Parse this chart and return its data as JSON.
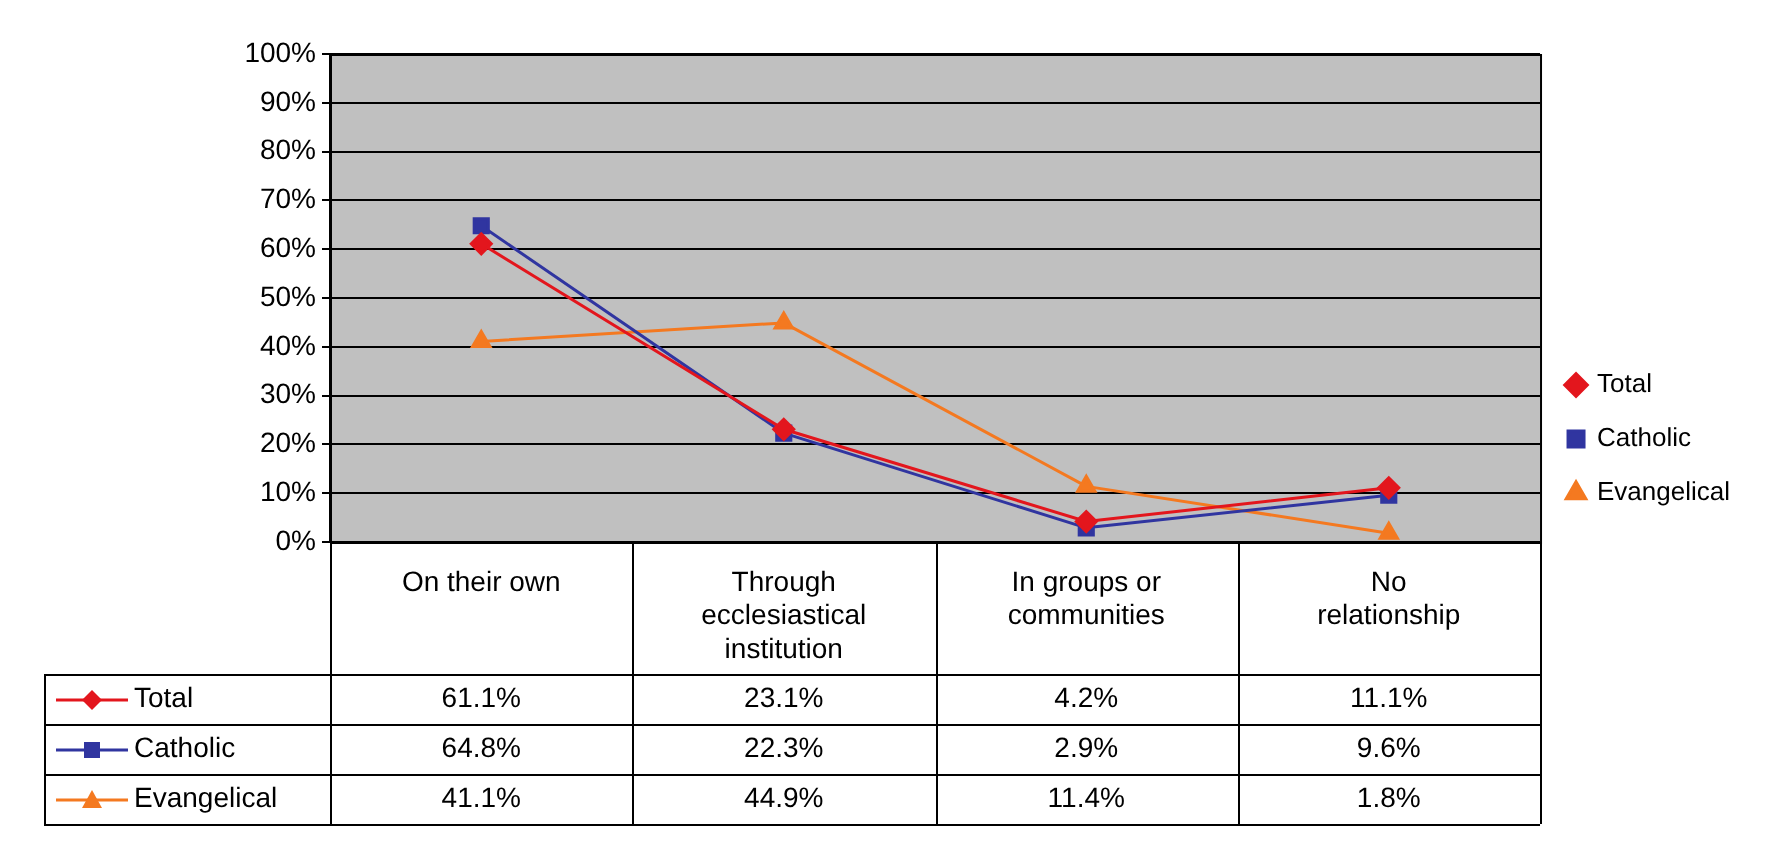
{
  "chart_data": {
    "type": "line",
    "categories": [
      "On their own",
      "Through ecclesiastical institution",
      "In groups or communities",
      "No relationship"
    ],
    "series": [
      {
        "name": "Total",
        "color": "#e3161d",
        "marker": "diamond",
        "values": [
          61.1,
          23.1,
          4.2,
          11.1
        ],
        "value_labels": [
          "61.1%",
          "23.1%",
          "4.2%",
          "11.1%"
        ]
      },
      {
        "name": "Catholic",
        "color": "#3035a0",
        "marker": "square",
        "values": [
          64.8,
          22.3,
          2.9,
          9.6
        ],
        "value_labels": [
          "64.8%",
          "22.3%",
          "2.9%",
          "9.6%"
        ]
      },
      {
        "name": "Evangelical",
        "color": "#f47920",
        "marker": "triangle",
        "values": [
          41.1,
          44.9,
          11.4,
          1.8
        ],
        "value_labels": [
          "41.1%",
          "44.9%",
          "11.4%",
          "1.8%"
        ]
      }
    ],
    "ylim": [
      0,
      100
    ],
    "yticks": [
      {
        "value": 0,
        "label": "0%"
      },
      {
        "value": 10,
        "label": "10%"
      },
      {
        "value": 20,
        "label": "20%"
      },
      {
        "value": 30,
        "label": "30%"
      },
      {
        "value": 40,
        "label": "40%"
      },
      {
        "value": 50,
        "label": "50%"
      },
      {
        "value": 60,
        "label": "60%"
      },
      {
        "value": 70,
        "label": "70%"
      },
      {
        "value": 80,
        "label": "80%"
      },
      {
        "value": 90,
        "label": "90%"
      },
      {
        "value": 100,
        "label": "100%"
      }
    ],
    "grid": "y",
    "legend": "right"
  }
}
